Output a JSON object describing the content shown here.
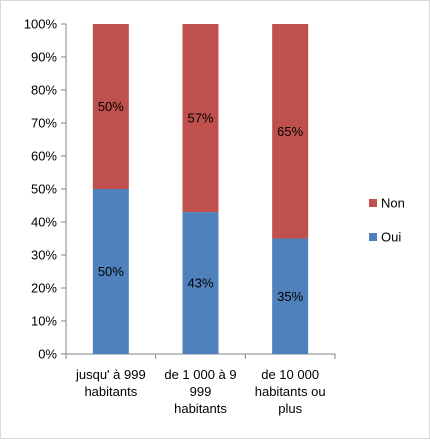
{
  "chart_data": {
    "type": "bar",
    "stacked": true,
    "title": "",
    "xlabel": "",
    "ylabel": "",
    "ylim": [
      0,
      100
    ],
    "yticks": [
      "0%",
      "10%",
      "20%",
      "30%",
      "40%",
      "50%",
      "60%",
      "70%",
      "80%",
      "90%",
      "100%"
    ],
    "categories": [
      [
        "jusqu' à 999",
        "habitants"
      ],
      [
        "de 1 000 à 9",
        "999",
        "habitants"
      ],
      [
        "de 10 000",
        "habitants ou",
        "plus"
      ]
    ],
    "series": [
      {
        "name": "Oui",
        "color": "#4f81bd",
        "values": [
          50,
          43,
          35
        ],
        "labels": [
          "50%",
          "43%",
          "35%"
        ]
      },
      {
        "name": "Non",
        "color": "#c0504d",
        "values": [
          50,
          57,
          65
        ],
        "labels": [
          "50%",
          "57%",
          "65%"
        ]
      }
    ],
    "grid": false,
    "legend": "right"
  }
}
